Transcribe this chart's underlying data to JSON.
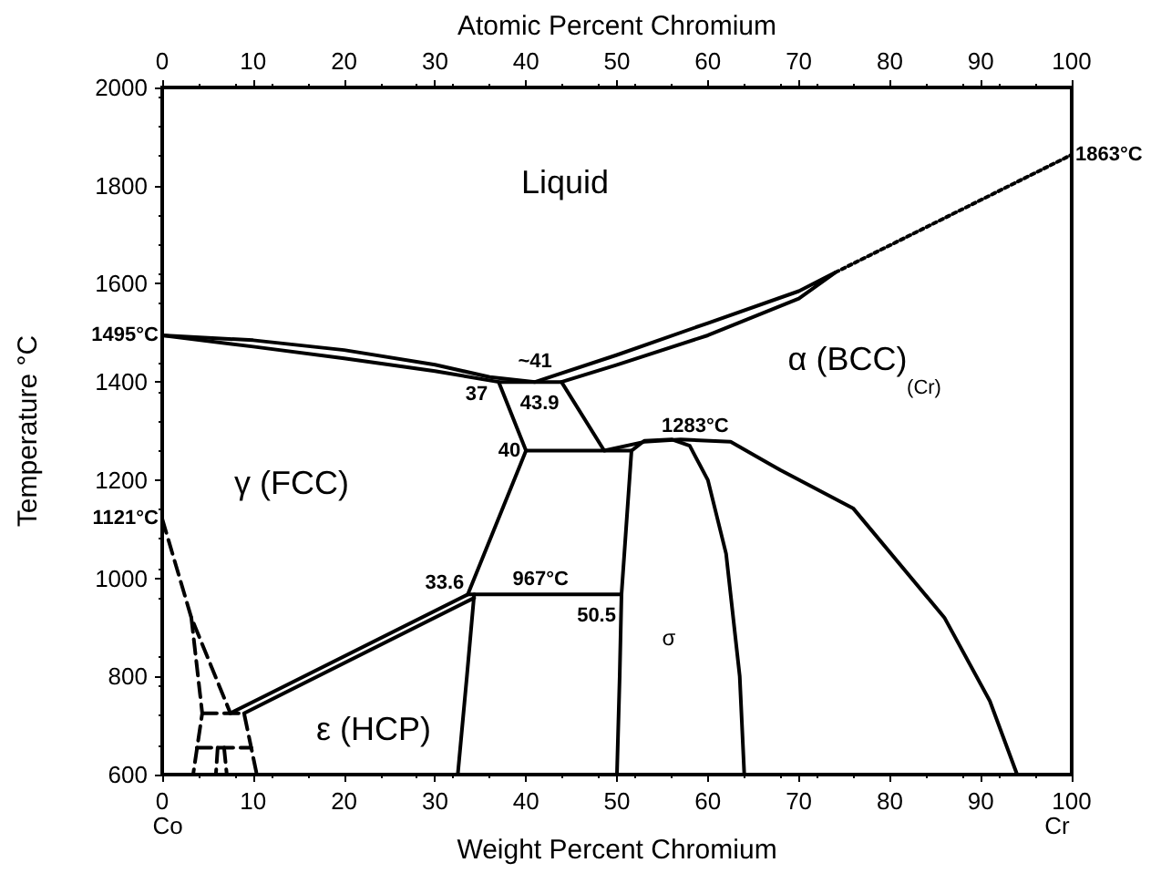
{
  "chart_data": {
    "type": "line",
    "xlabel": "Weight Percent Chromium",
    "x2label": "Atomic Percent Chromium",
    "ylabel": "Temperature °C",
    "xlim": [
      0,
      100
    ],
    "xticks": [
      0,
      10,
      20,
      30,
      40,
      50,
      60,
      70,
      80,
      90,
      100
    ],
    "x2lim": [
      0,
      100
    ],
    "x2ticks": [
      0,
      10,
      20,
      30,
      40,
      50,
      60,
      70,
      80,
      90,
      100
    ],
    "ylim": [
      600,
      2000
    ],
    "yticks": [
      600,
      800,
      1000,
      1200,
      1400,
      1600,
      1800,
      2000
    ],
    "grid": false,
    "marker": "none",
    "series": [
      {
        "color": "#000000",
        "line_style": "solid",
        "x": [
          0,
          10,
          20,
          30,
          36,
          41,
          50,
          60,
          70,
          74,
          70,
          60,
          50,
          43.9,
          48.6,
          53,
          57,
          62.5,
          68,
          76,
          86,
          91,
          94
        ],
        "values": [
          1495,
          1485,
          1465,
          1435,
          1410,
          1400,
          1455,
          1520,
          1585,
          1623,
          1570,
          1495,
          1435,
          1400,
          1260,
          1278,
          1283,
          1278,
          1220,
          1142,
          920,
          750,
          600
        ]
      },
      {
        "color": "#000000",
        "line_style": "solid",
        "x": [
          0,
          10,
          20,
          30,
          37,
          40,
          33.6,
          50.5
        ],
        "values": [
          1495,
          1472,
          1448,
          1422,
          1400,
          1260,
          967,
          967
        ]
      },
      {
        "color": "#000000",
        "line_style": "solid",
        "x": [
          37,
          43.9
        ],
        "values": [
          1400,
          1400
        ]
      },
      {
        "color": "#000000",
        "line_style": "dotted",
        "x": [
          74,
          100
        ],
        "values": [
          1623,
          1863
        ]
      },
      {
        "color": "#000000",
        "line_style": "solid",
        "x": [
          40,
          51.6
        ],
        "values": [
          1260,
          1260
        ]
      },
      {
        "color": "#000000",
        "line_style": "solid",
        "x": [
          50,
          50.3,
          50.5,
          51,
          51.6,
          53,
          56,
          58,
          60,
          62,
          63.5,
          64
        ],
        "values": [
          600,
          800,
          967,
          1100,
          1260,
          1280,
          1283,
          1270,
          1200,
          1050,
          800,
          600
        ]
      },
      {
        "color": "#000000",
        "line_style": "solid",
        "x": [
          34.3,
          33.5,
          32.5
        ],
        "values": [
          967,
          800,
          600
        ]
      },
      {
        "color": "#000000",
        "line_style": "solid",
        "x": [
          7.5,
          33.6
        ],
        "values": [
          725,
          967
        ]
      },
      {
        "color": "#000000",
        "line_style": "solid",
        "x": [
          9,
          34.3
        ],
        "values": [
          725,
          960
        ]
      },
      {
        "color": "#000000",
        "line_style": "dashed",
        "x": [
          0,
          3.2,
          7.5
        ],
        "values": [
          1121,
          920,
          725
        ]
      },
      {
        "color": "#000000",
        "line_style": "dashed",
        "x": [
          3.2,
          4.4,
          3.4
        ],
        "values": [
          920,
          725,
          600
        ]
      },
      {
        "color": "#000000",
        "line_style": "dashed",
        "x": [
          4.4,
          9,
          10.4
        ],
        "values": [
          725,
          725,
          600
        ]
      },
      {
        "color": "#000000",
        "line_style": "dashed",
        "x": [
          3.8,
          9.8
        ],
        "values": [
          655,
          655
        ]
      },
      {
        "color": "#000000",
        "line_style": "dashed",
        "x": [
          6.1,
          5.9
        ],
        "values": [
          655,
          600
        ]
      },
      {
        "color": "#000000",
        "line_style": "dashed",
        "x": [
          6.8,
          7.1
        ],
        "values": [
          655,
          600
        ]
      }
    ],
    "annotations": [
      "Liquid",
      "γ (FCC)",
      "α (BCC)",
      "(Cr)",
      "ε (HCP)",
      "σ",
      "Co",
      "Cr",
      {
        "text": "~41",
        "x": 41,
        "y": 1400
      },
      {
        "text": "37",
        "x": 37,
        "y": 1400
      },
      {
        "text": "43.9",
        "x": 43.9,
        "y": 1400
      },
      {
        "text": "40",
        "x": 40,
        "y": 1260
      },
      {
        "text": "1283°C",
        "x": 56,
        "y": 1283
      },
      {
        "text": "33.6",
        "x": 33.6,
        "y": 967
      },
      {
        "text": "967°C",
        "x": 42,
        "y": 967
      },
      {
        "text": "50.5",
        "x": 50.5,
        "y": 967
      },
      {
        "text": "1495°C",
        "x": 0,
        "y": 1495
      },
      {
        "text": "1863°C",
        "x": 100,
        "y": 1863
      },
      {
        "text": "1121°C",
        "x": 0,
        "y": 1121
      }
    ]
  }
}
